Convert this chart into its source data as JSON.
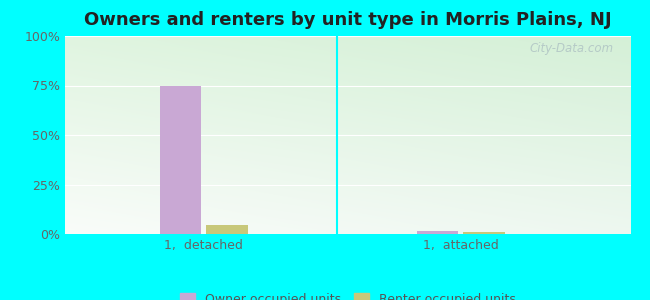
{
  "title": "Owners and renters by unit type in Morris Plains, NJ",
  "categories": [
    "1,  detached",
    "1,  attached"
  ],
  "owner_values": [
    75.0,
    1.5
  ],
  "renter_values": [
    4.5,
    1.0
  ],
  "owner_color": "#c9a8d4",
  "renter_color": "#c8c87a",
  "ylim": [
    0,
    100
  ],
  "yticks": [
    0,
    25,
    50,
    75,
    100
  ],
  "yticklabels": [
    "0%",
    "25%",
    "50%",
    "75%",
    "100%"
  ],
  "bar_width": 0.08,
  "group_positions": [
    0.22,
    0.72
  ],
  "outer_bg": "#00ffff",
  "title_fontsize": 13,
  "tick_fontsize": 9,
  "legend_fontsize": 9,
  "watermark": "City-Data.com",
  "grid_color": "#ffffff",
  "bg_color_topleft": "#c8e8c8",
  "bg_color_topright": "#e8f8e8",
  "bg_color_bottomleft": "#d0f0d0",
  "bg_color_bottomright": "#f0fff0"
}
